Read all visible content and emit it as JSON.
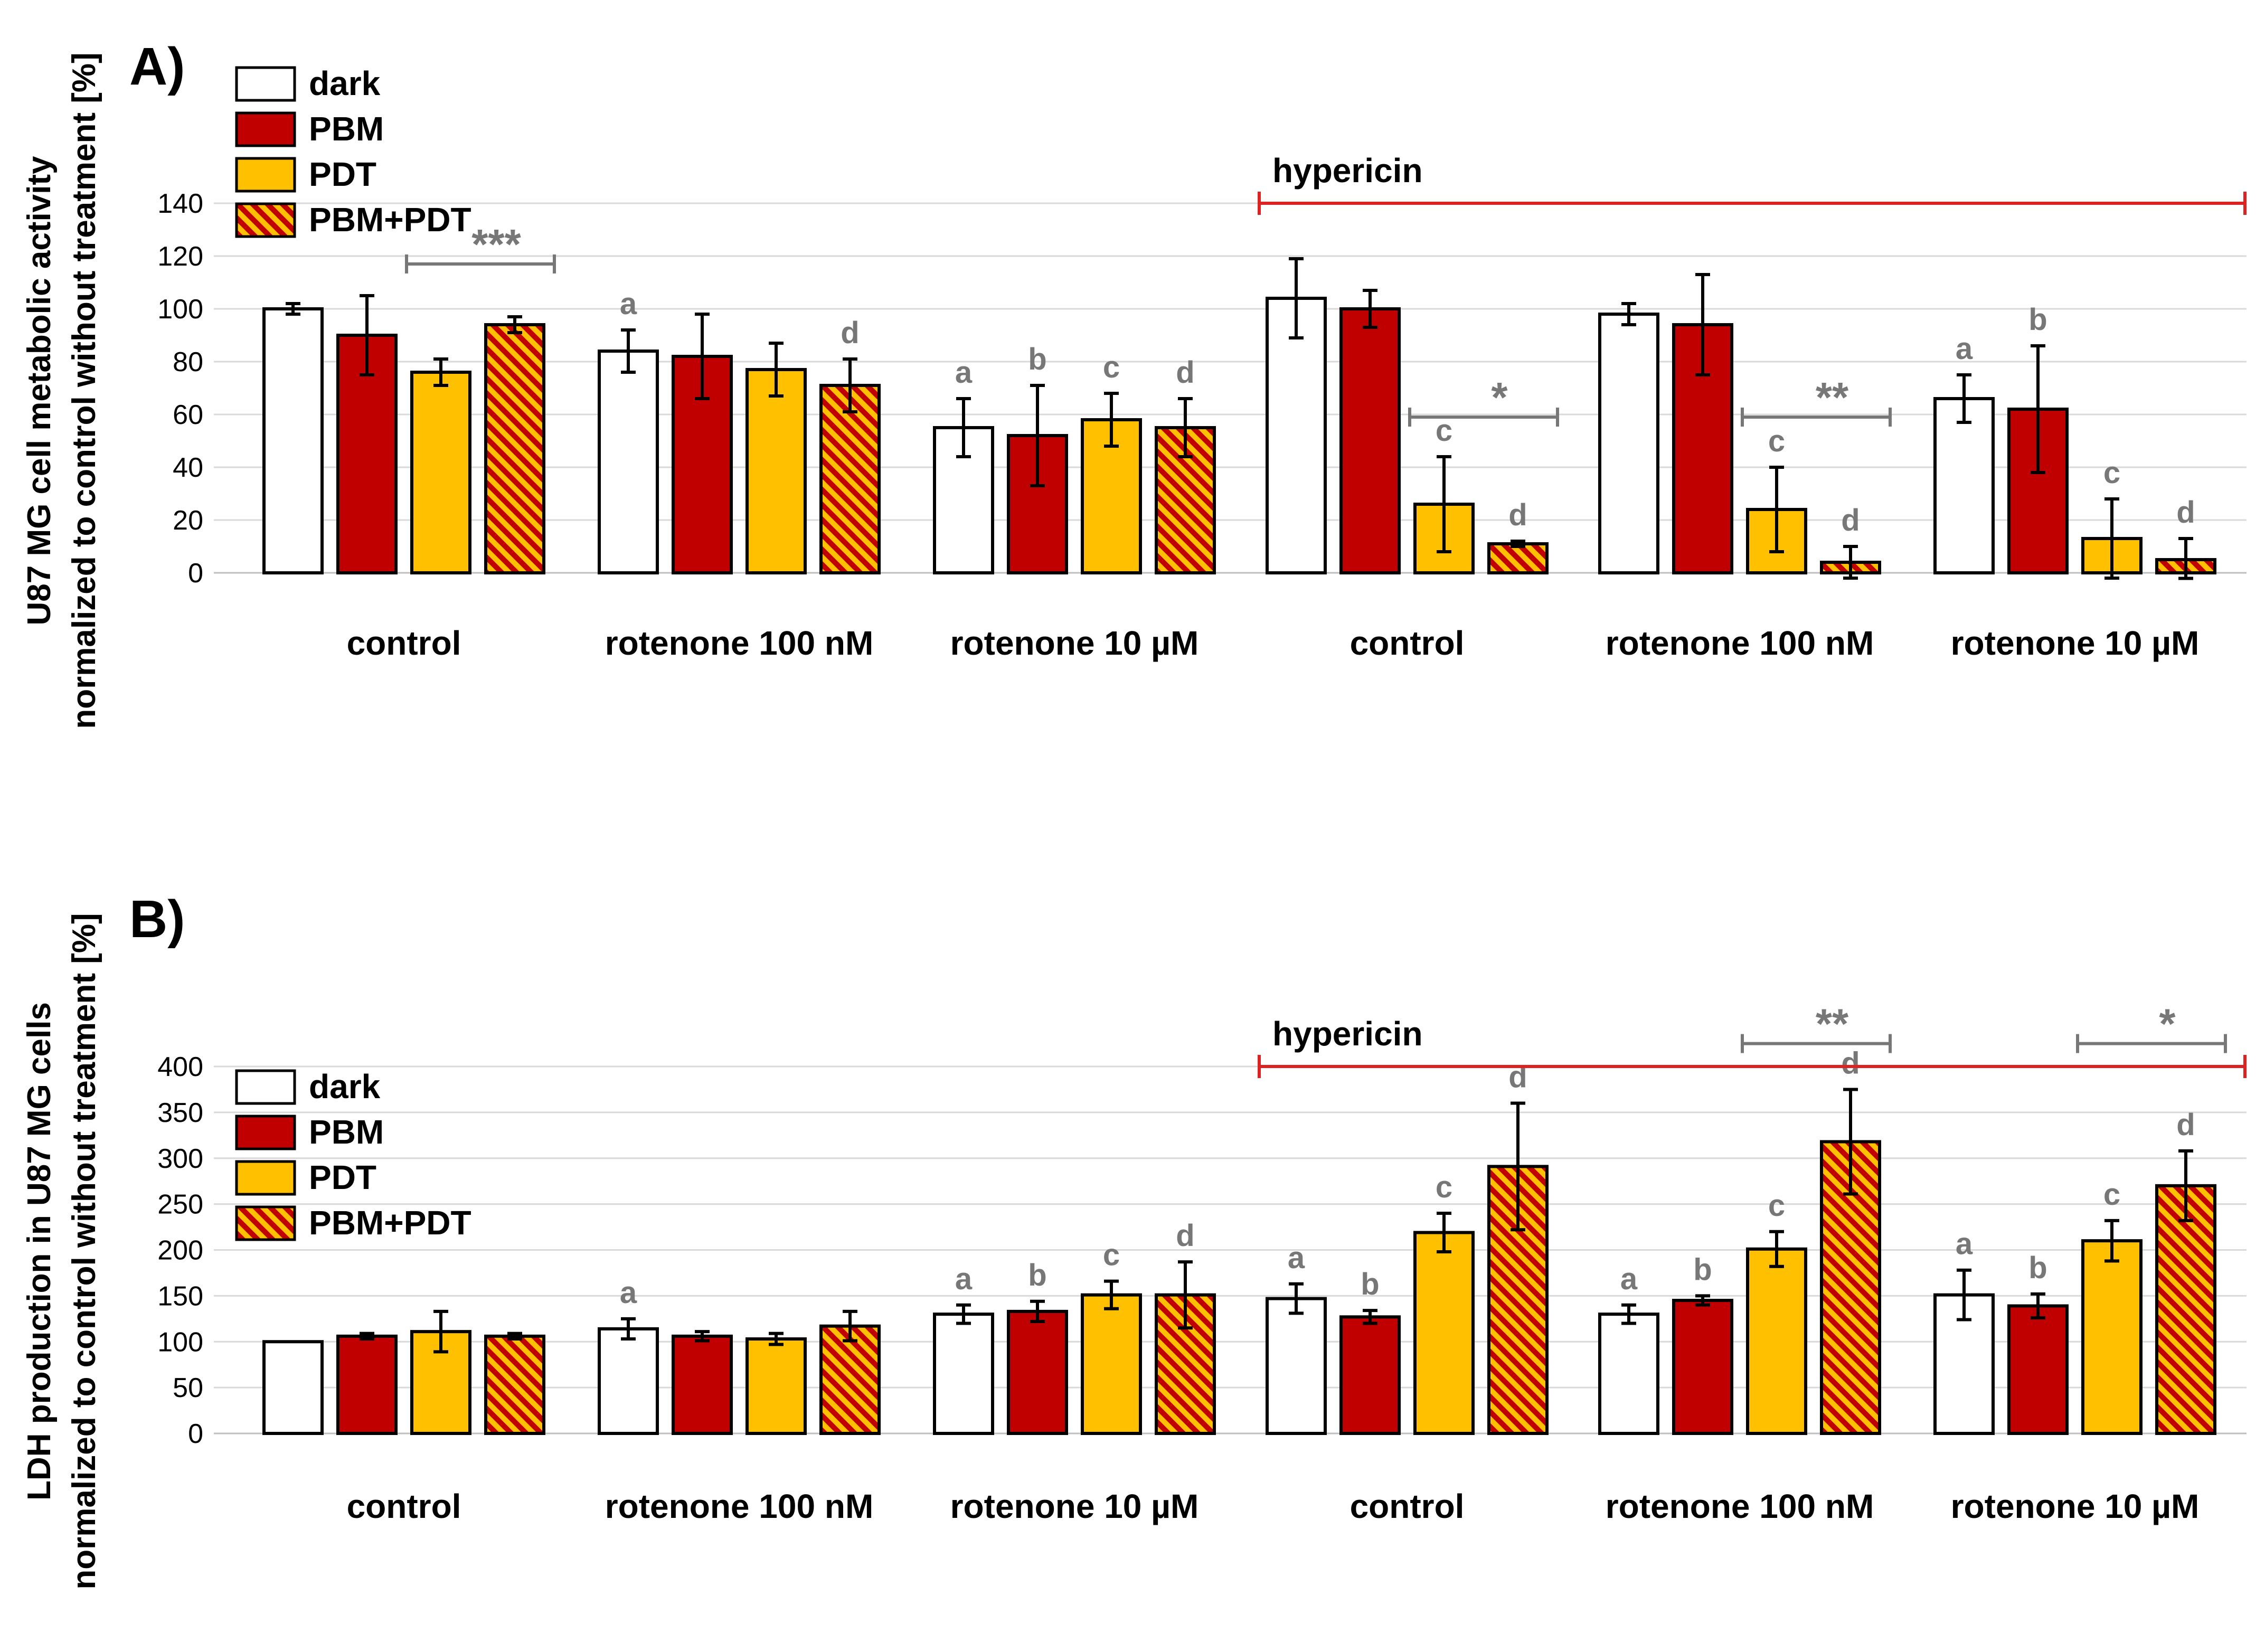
{
  "colors": {
    "dark": "#ffffff",
    "PBM": "#c00000",
    "PDT": "#ffc000",
    "stripe_red": "#c00000",
    "stripe_yellow": "#ffc000",
    "hypericin_line": "#dd2222",
    "annotation": "#777777",
    "grid": "#d9d9d9"
  },
  "chart_data": [
    {
      "panel": "A)",
      "type": "bar",
      "ylabel": [
        "U87 MG cell metabolic activity",
        "normalized to control without treatment [%]"
      ],
      "ylim": [
        0,
        140
      ],
      "yticks": [
        0,
        20,
        40,
        60,
        80,
        100,
        120,
        140
      ],
      "grid": true,
      "legend_position": "top-left",
      "legend": [
        "dark",
        "PBM",
        "PDT",
        "PBM+PDT"
      ],
      "hypericin_label": "hypericin",
      "hypericin_groups": [
        3,
        5
      ],
      "categories": [
        "control",
        "rotenone 100 nM",
        "rotenone 10 µM",
        "control",
        "rotenone 100 nM",
        "rotenone 10 µM"
      ],
      "series": [
        {
          "name": "dark",
          "values": [
            100,
            84,
            55,
            104,
            98,
            66
          ],
          "errors": [
            2,
            8,
            11,
            15,
            4,
            9
          ],
          "letters": [
            "",
            "a",
            "a",
            "",
            "",
            "a"
          ]
        },
        {
          "name": "PBM",
          "values": [
            90,
            82,
            52,
            100,
            94,
            62
          ],
          "errors": [
            15,
            16,
            19,
            7,
            19,
            24
          ],
          "letters": [
            "",
            "",
            "b",
            "",
            "",
            "b"
          ]
        },
        {
          "name": "PDT",
          "values": [
            76,
            77,
            58,
            26,
            24,
            13
          ],
          "errors": [
            5,
            10,
            10,
            18,
            16,
            15
          ],
          "letters": [
            "",
            "",
            "c",
            "c",
            "c",
            "c"
          ]
        },
        {
          "name": "PBM+PDT",
          "values": [
            94,
            71,
            55,
            11,
            4,
            5
          ],
          "errors": [
            3,
            10,
            11,
            1,
            6,
            8
          ],
          "letters": [
            "",
            "d",
            "d",
            "d",
            "d",
            "d"
          ]
        }
      ],
      "significance": [
        {
          "label": "***",
          "group": 0,
          "from_series": 2,
          "to_series": 3,
          "at": 117
        },
        {
          "label": "*",
          "group": 3,
          "from_series": 2,
          "to_series": 3,
          "at": 59
        },
        {
          "label": "**",
          "group": 4,
          "from_series": 2,
          "to_series": 3,
          "at": 59
        }
      ]
    },
    {
      "panel": "B)",
      "type": "bar",
      "ylabel": [
        "LDH production in U87 MG cells",
        "normalized to control without treatment [%]"
      ],
      "ylim": [
        0,
        400
      ],
      "yticks": [
        0,
        50,
        100,
        150,
        200,
        250,
        300,
        350,
        400
      ],
      "grid": true,
      "legend_position": "top-left",
      "legend": [
        "dark",
        "PBM",
        "PDT",
        "PBM+PDT"
      ],
      "hypericin_label": "hypericin",
      "hypericin_groups": [
        3,
        5
      ],
      "categories": [
        "control",
        "rotenone 100 nM",
        "rotenone 10 µM",
        "control",
        "rotenone 100 nM",
        "rotenone 10 µM"
      ],
      "series": [
        {
          "name": "dark",
          "values": [
            100,
            114,
            130,
            147,
            130,
            151
          ],
          "errors": [
            0,
            11,
            10,
            16,
            10,
            27
          ],
          "letters": [
            "",
            "a",
            "a",
            "a",
            "a",
            "a"
          ]
        },
        {
          "name": "PBM",
          "values": [
            106,
            106,
            133,
            127,
            145,
            139
          ],
          "errors": [
            3,
            5,
            11,
            7,
            5,
            13
          ],
          "letters": [
            "",
            "",
            "b",
            "b",
            "b",
            "b"
          ]
        },
        {
          "name": "PDT",
          "values": [
            111,
            103,
            151,
            219,
            201,
            210
          ],
          "errors": [
            22,
            6,
            15,
            21,
            19,
            22
          ],
          "letters": [
            "",
            "",
            "c",
            "c",
            "c",
            "c"
          ]
        },
        {
          "name": "PBM+PDT",
          "values": [
            106,
            117,
            151,
            291,
            318,
            270
          ],
          "errors": [
            3,
            16,
            36,
            69,
            57,
            38
          ],
          "letters": [
            "",
            "",
            "d",
            "d",
            "d",
            "d"
          ]
        }
      ],
      "significance": [
        {
          "label": "**",
          "group": 4,
          "from_series": 2,
          "to_series": 3,
          "at": 425
        },
        {
          "label": "*",
          "group": 5,
          "from_series": 2,
          "to_series": 3,
          "at": 425
        }
      ]
    }
  ]
}
